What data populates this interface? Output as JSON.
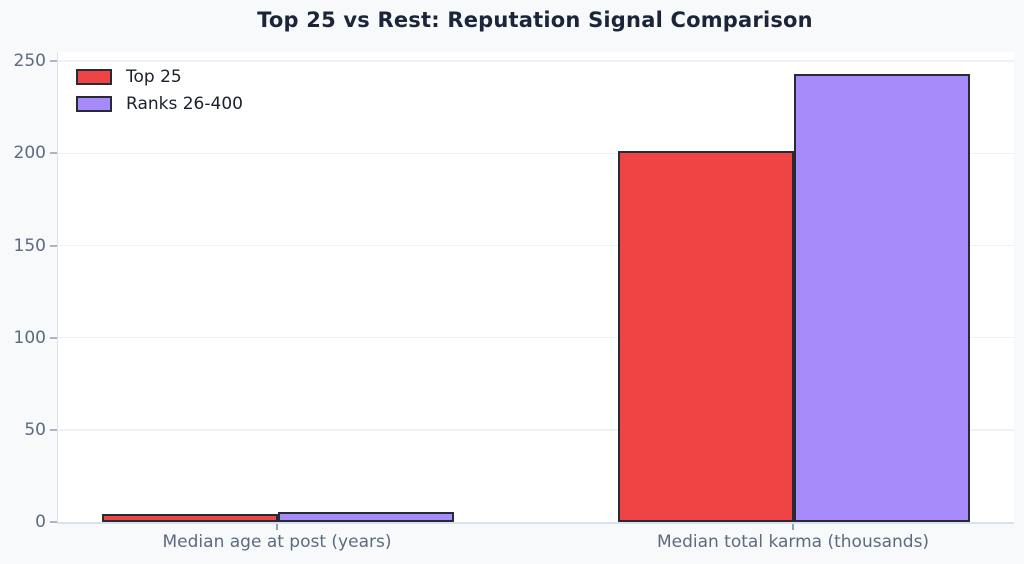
{
  "chart_data": {
    "type": "bar",
    "title": "Top 25 vs Rest: Reputation Signal Comparison",
    "categories": [
      "Median age at post (years)",
      "Median total karma (thousands)"
    ],
    "series": [
      {
        "name": "Top 25",
        "color": "#ef4444",
        "values": [
          3.4,
          200
        ]
      },
      {
        "name": "Ranks 26-400",
        "color": "#a78bfa",
        "values": [
          4.3,
          242
        ]
      }
    ],
    "xlabel": "",
    "ylabel": "",
    "ylim": [
      0,
      255
    ],
    "yticks": [
      0,
      50,
      100,
      150,
      200,
      250
    ],
    "grid": true,
    "legend_position": "upper-left"
  },
  "colors": {
    "background": "#f7f9fb",
    "plot_background": "#ffffff",
    "bar_edge": "#262b36",
    "gridline": "#eef1f5",
    "axis_spine": "#d9e1ea",
    "title_text": "#1b2438",
    "tick_text": "#5d6b80",
    "legend_text": "#1a202c",
    "series_top25": "#ef4444",
    "series_rest": "#a78bfa"
  }
}
